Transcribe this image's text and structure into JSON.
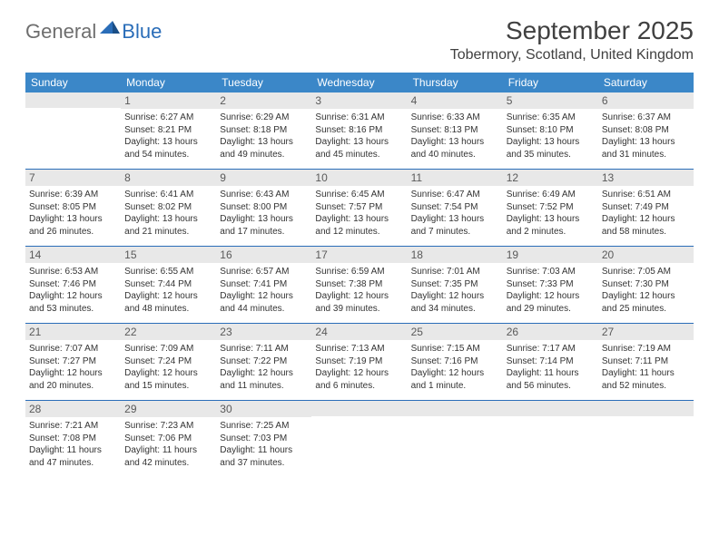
{
  "logo": {
    "general": "General",
    "blue": "Blue"
  },
  "title": "September 2025",
  "location": "Tobermory, Scotland, United Kingdom",
  "colors": {
    "header_bg": "#3b87c8",
    "header_text": "#ffffff",
    "border": "#2a6db8",
    "daynum_bg": "#e8e8e8",
    "text": "#333333",
    "logo_gray": "#6e6e6e",
    "logo_blue": "#2a6db8"
  },
  "weekdays": [
    "Sunday",
    "Monday",
    "Tuesday",
    "Wednesday",
    "Thursday",
    "Friday",
    "Saturday"
  ],
  "weeks": [
    [
      {
        "n": null
      },
      {
        "n": "1",
        "sunrise": "Sunrise: 6:27 AM",
        "sunset": "Sunset: 8:21 PM",
        "day1": "Daylight: 13 hours",
        "day2": "and 54 minutes."
      },
      {
        "n": "2",
        "sunrise": "Sunrise: 6:29 AM",
        "sunset": "Sunset: 8:18 PM",
        "day1": "Daylight: 13 hours",
        "day2": "and 49 minutes."
      },
      {
        "n": "3",
        "sunrise": "Sunrise: 6:31 AM",
        "sunset": "Sunset: 8:16 PM",
        "day1": "Daylight: 13 hours",
        "day2": "and 45 minutes."
      },
      {
        "n": "4",
        "sunrise": "Sunrise: 6:33 AM",
        "sunset": "Sunset: 8:13 PM",
        "day1": "Daylight: 13 hours",
        "day2": "and 40 minutes."
      },
      {
        "n": "5",
        "sunrise": "Sunrise: 6:35 AM",
        "sunset": "Sunset: 8:10 PM",
        "day1": "Daylight: 13 hours",
        "day2": "and 35 minutes."
      },
      {
        "n": "6",
        "sunrise": "Sunrise: 6:37 AM",
        "sunset": "Sunset: 8:08 PM",
        "day1": "Daylight: 13 hours",
        "day2": "and 31 minutes."
      }
    ],
    [
      {
        "n": "7",
        "sunrise": "Sunrise: 6:39 AM",
        "sunset": "Sunset: 8:05 PM",
        "day1": "Daylight: 13 hours",
        "day2": "and 26 minutes."
      },
      {
        "n": "8",
        "sunrise": "Sunrise: 6:41 AM",
        "sunset": "Sunset: 8:02 PM",
        "day1": "Daylight: 13 hours",
        "day2": "and 21 minutes."
      },
      {
        "n": "9",
        "sunrise": "Sunrise: 6:43 AM",
        "sunset": "Sunset: 8:00 PM",
        "day1": "Daylight: 13 hours",
        "day2": "and 17 minutes."
      },
      {
        "n": "10",
        "sunrise": "Sunrise: 6:45 AM",
        "sunset": "Sunset: 7:57 PM",
        "day1": "Daylight: 13 hours",
        "day2": "and 12 minutes."
      },
      {
        "n": "11",
        "sunrise": "Sunrise: 6:47 AM",
        "sunset": "Sunset: 7:54 PM",
        "day1": "Daylight: 13 hours",
        "day2": "and 7 minutes."
      },
      {
        "n": "12",
        "sunrise": "Sunrise: 6:49 AM",
        "sunset": "Sunset: 7:52 PM",
        "day1": "Daylight: 13 hours",
        "day2": "and 2 minutes."
      },
      {
        "n": "13",
        "sunrise": "Sunrise: 6:51 AM",
        "sunset": "Sunset: 7:49 PM",
        "day1": "Daylight: 12 hours",
        "day2": "and 58 minutes."
      }
    ],
    [
      {
        "n": "14",
        "sunrise": "Sunrise: 6:53 AM",
        "sunset": "Sunset: 7:46 PM",
        "day1": "Daylight: 12 hours",
        "day2": "and 53 minutes."
      },
      {
        "n": "15",
        "sunrise": "Sunrise: 6:55 AM",
        "sunset": "Sunset: 7:44 PM",
        "day1": "Daylight: 12 hours",
        "day2": "and 48 minutes."
      },
      {
        "n": "16",
        "sunrise": "Sunrise: 6:57 AM",
        "sunset": "Sunset: 7:41 PM",
        "day1": "Daylight: 12 hours",
        "day2": "and 44 minutes."
      },
      {
        "n": "17",
        "sunrise": "Sunrise: 6:59 AM",
        "sunset": "Sunset: 7:38 PM",
        "day1": "Daylight: 12 hours",
        "day2": "and 39 minutes."
      },
      {
        "n": "18",
        "sunrise": "Sunrise: 7:01 AM",
        "sunset": "Sunset: 7:35 PM",
        "day1": "Daylight: 12 hours",
        "day2": "and 34 minutes."
      },
      {
        "n": "19",
        "sunrise": "Sunrise: 7:03 AM",
        "sunset": "Sunset: 7:33 PM",
        "day1": "Daylight: 12 hours",
        "day2": "and 29 minutes."
      },
      {
        "n": "20",
        "sunrise": "Sunrise: 7:05 AM",
        "sunset": "Sunset: 7:30 PM",
        "day1": "Daylight: 12 hours",
        "day2": "and 25 minutes."
      }
    ],
    [
      {
        "n": "21",
        "sunrise": "Sunrise: 7:07 AM",
        "sunset": "Sunset: 7:27 PM",
        "day1": "Daylight: 12 hours",
        "day2": "and 20 minutes."
      },
      {
        "n": "22",
        "sunrise": "Sunrise: 7:09 AM",
        "sunset": "Sunset: 7:24 PM",
        "day1": "Daylight: 12 hours",
        "day2": "and 15 minutes."
      },
      {
        "n": "23",
        "sunrise": "Sunrise: 7:11 AM",
        "sunset": "Sunset: 7:22 PM",
        "day1": "Daylight: 12 hours",
        "day2": "and 11 minutes."
      },
      {
        "n": "24",
        "sunrise": "Sunrise: 7:13 AM",
        "sunset": "Sunset: 7:19 PM",
        "day1": "Daylight: 12 hours",
        "day2": "and 6 minutes."
      },
      {
        "n": "25",
        "sunrise": "Sunrise: 7:15 AM",
        "sunset": "Sunset: 7:16 PM",
        "day1": "Daylight: 12 hours",
        "day2": "and 1 minute."
      },
      {
        "n": "26",
        "sunrise": "Sunrise: 7:17 AM",
        "sunset": "Sunset: 7:14 PM",
        "day1": "Daylight: 11 hours",
        "day2": "and 56 minutes."
      },
      {
        "n": "27",
        "sunrise": "Sunrise: 7:19 AM",
        "sunset": "Sunset: 7:11 PM",
        "day1": "Daylight: 11 hours",
        "day2": "and 52 minutes."
      }
    ],
    [
      {
        "n": "28",
        "sunrise": "Sunrise: 7:21 AM",
        "sunset": "Sunset: 7:08 PM",
        "day1": "Daylight: 11 hours",
        "day2": "and 47 minutes."
      },
      {
        "n": "29",
        "sunrise": "Sunrise: 7:23 AM",
        "sunset": "Sunset: 7:06 PM",
        "day1": "Daylight: 11 hours",
        "day2": "and 42 minutes."
      },
      {
        "n": "30",
        "sunrise": "Sunrise: 7:25 AM",
        "sunset": "Sunset: 7:03 PM",
        "day1": "Daylight: 11 hours",
        "day2": "and 37 minutes."
      },
      {
        "n": null
      },
      {
        "n": null
      },
      {
        "n": null
      },
      {
        "n": null
      }
    ]
  ]
}
